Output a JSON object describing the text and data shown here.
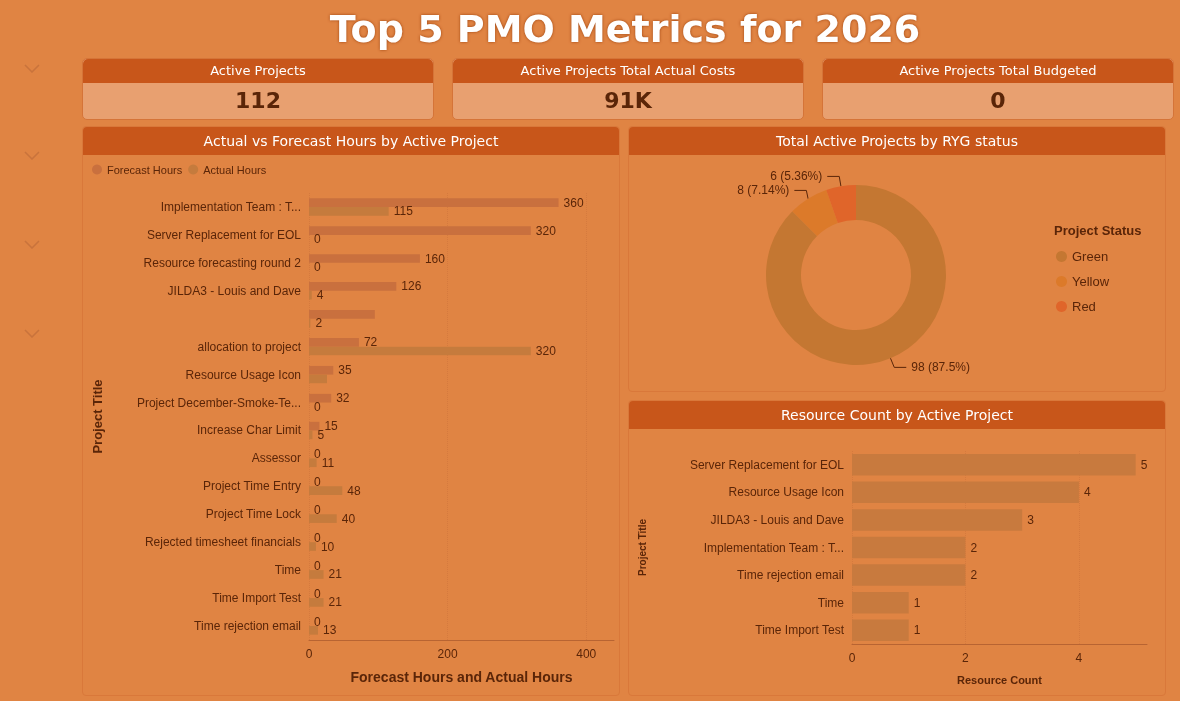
{
  "chart_data": [
    {
      "type": "other",
      "title": "Top 5 PMO Metrics for 2026",
      "categories": [
        "Active Projects",
        "Active Projects Total Actual Costs",
        "Active Projects Total Budgeted"
      ],
      "value_labels": [
        "112",
        "91K",
        "0"
      ]
    },
    {
      "type": "bar",
      "orientation": "horizontal",
      "title": "Actual vs Forecast Hours by Active Project",
      "xlabel": "Forecast Hours and Actual Hours",
      "ylabel": "Project Title",
      "categories": [
        "Implementation Team : T...",
        "Server Replacement for EOL",
        "Resource forecasting round 2",
        "JILDA3 - Louis and Dave",
        null,
        "allocation to project",
        "Resource Usage Icon",
        "Project December-Smoke-Te...",
        "Increase Char Limit",
        "Assessor",
        "Project Time Entry",
        "Project Time Lock",
        "Rejected timesheet financials",
        "Time",
        "Time Import Test",
        "Time rejection email"
      ],
      "series": [
        {
          "name": "Forecast Hours",
          "color": "#c9703e",
          "values": [
            360,
            320,
            160,
            126,
            95,
            72,
            35,
            32,
            15,
            0,
            0,
            0,
            0,
            0,
            0,
            0
          ],
          "value_labels": [
            "360",
            "320",
            "160",
            "126",
            null,
            "72",
            "35",
            "32",
            "15",
            "0",
            "0",
            "0",
            "0",
            "0",
            "0",
            "0"
          ]
        },
        {
          "name": "Actual Hours",
          "color": "#c57b3d",
          "values": [
            115,
            0,
            0,
            4,
            2,
            320,
            26,
            0,
            5,
            11,
            48,
            40,
            10,
            21,
            21,
            13
          ],
          "value_labels": [
            "115",
            "0",
            "0",
            "4",
            "2",
            "320",
            null,
            "0",
            "5",
            "11",
            "48",
            "40",
            "10",
            "21",
            "21",
            "13"
          ]
        }
      ],
      "xlim": [
        0,
        440
      ],
      "xticks": [
        0,
        200,
        400
      ],
      "grid": "x",
      "legend": "top left"
    },
    {
      "type": "donut",
      "title": "Total Active Projects by RYG status",
      "categories": [
        "Green",
        "Yellow",
        "Red"
      ],
      "values": [
        98,
        8,
        6
      ],
      "colors": [
        "#c47732",
        "#dc7a2a",
        "#e0652a"
      ],
      "value_labels": [
        "98 (87.5%)",
        "8 (7.14%)",
        "6 (5.36%)"
      ],
      "legend_title": "Project Status",
      "legend": "right"
    },
    {
      "type": "bar",
      "orientation": "horizontal",
      "title": "Resource Count by Active Project",
      "xlabel": "Resource Count",
      "ylabel": "Project Title",
      "categories": [
        "Server Replacement for EOL",
        "Resource Usage Icon",
        "JILDA3 - Louis and Dave",
        "Implementation Team : T...",
        "Time rejection email",
        "Time",
        "Time Import Test"
      ],
      "values": [
        5,
        4,
        3,
        2,
        2,
        1,
        1
      ],
      "color": "#c87a3e",
      "xlim": [
        0,
        5.2
      ],
      "xticks": [
        0,
        2,
        4
      ],
      "grid": "x",
      "data_labels": true
    }
  ]
}
